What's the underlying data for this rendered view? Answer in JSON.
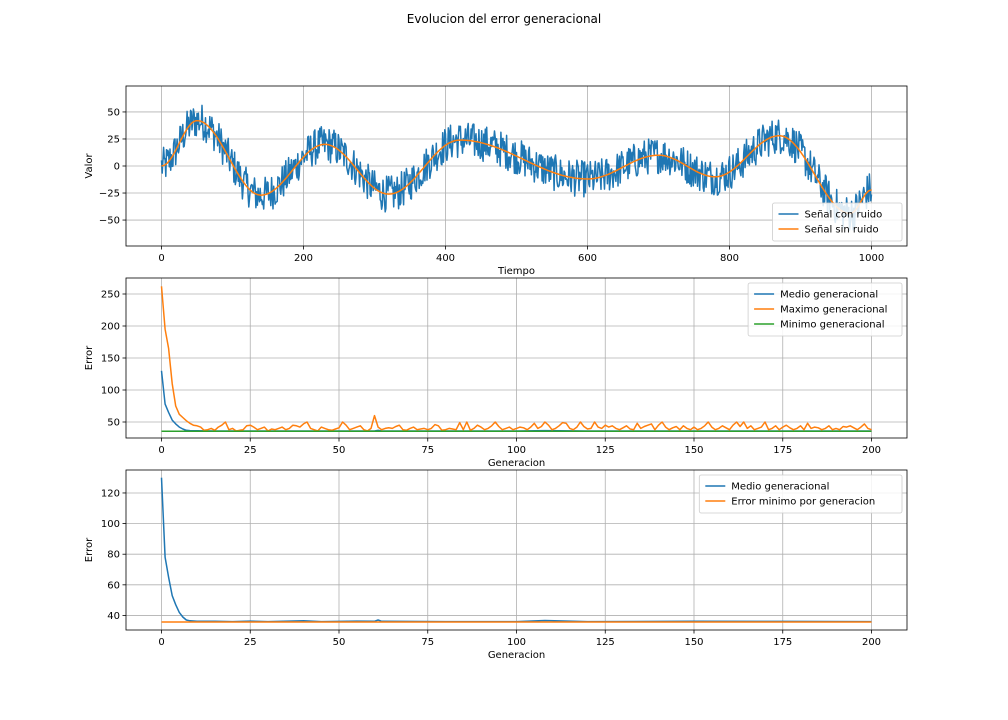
{
  "suptitle": "Evolucion del error generacional",
  "colors": {
    "blue": "#1f77b4",
    "orange": "#ff7f0e",
    "green": "#2ca02c",
    "grid": "#b0b0b0"
  },
  "chart_data": [
    {
      "type": "line",
      "xlabel": "Tiempo",
      "ylabel": "Valor",
      "xlim": [
        -50,
        1050
      ],
      "ylim": [
        -74,
        74
      ],
      "xticks": [
        0,
        200,
        400,
        600,
        800,
        1000
      ],
      "yticks": [
        -50,
        -25,
        0,
        25,
        50
      ],
      "grid": true,
      "legend": "lower right",
      "series": [
        {
          "name": "Señal con ruido",
          "color": "#1f77b4",
          "noisy": true,
          "noise_amplitude": 17,
          "x": [
            0,
            50,
            140,
            230,
            320,
            420,
            600,
            700,
            780,
            870,
            970,
            1000
          ],
          "y": [
            0,
            42,
            -27,
            20,
            -26,
            24,
            -12,
            10,
            -10,
            28,
            -44,
            -22
          ]
        },
        {
          "name": "Señal sin ruido",
          "color": "#ff7f0e",
          "x": [
            0,
            50,
            140,
            230,
            320,
            420,
            600,
            700,
            780,
            870,
            970,
            1000
          ],
          "y": [
            0,
            42,
            -27,
            20,
            -26,
            24,
            -12,
            10,
            -10,
            28,
            -44,
            -22
          ]
        }
      ]
    },
    {
      "type": "line",
      "xlabel": "Generacion",
      "ylabel": "Error",
      "xlim": [
        -10,
        210
      ],
      "ylim": [
        25,
        275
      ],
      "xticks": [
        0,
        25,
        50,
        75,
        100,
        125,
        150,
        175,
        200
      ],
      "yticks": [
        50,
        100,
        150,
        200,
        250
      ],
      "grid": true,
      "legend": "upper right",
      "series": [
        {
          "name": "Medio generacional",
          "color": "#1f77b4",
          "x": [
            0,
            1,
            2,
            3,
            4,
            5,
            6,
            7,
            8,
            10,
            15,
            20,
            30,
            40,
            60,
            61,
            62,
            80,
            100,
            108,
            120,
            150,
            175,
            200
          ],
          "y": [
            130,
            78,
            65,
            53,
            47,
            42,
            39,
            37,
            36.5,
            36.2,
            36,
            36,
            36,
            36,
            36,
            37,
            36,
            36,
            36,
            36.5,
            36,
            36,
            36,
            36
          ]
        },
        {
          "name": "Maximo generacional",
          "color": "#ff7f0e",
          "x": [
            0,
            1,
            2,
            3,
            4,
            5,
            6,
            7,
            8,
            9,
            10,
            11,
            12,
            13,
            14,
            15,
            16,
            17,
            18,
            19,
            20,
            21,
            22,
            23,
            24,
            25,
            26,
            27,
            28,
            29,
            30,
            31,
            32,
            33,
            34,
            35,
            36,
            37,
            38,
            39,
            40,
            41,
            42,
            43,
            44,
            45,
            46,
            47,
            48,
            49,
            50,
            51,
            52,
            53,
            54,
            55,
            56,
            57,
            58,
            59,
            60,
            61,
            62,
            63,
            64,
            65,
            66,
            67,
            68,
            69,
            70,
            71,
            72,
            73,
            74,
            75,
            76,
            77,
            78,
            79,
            80,
            81,
            82,
            83,
            84,
            85,
            86,
            87,
            88,
            89,
            90,
            91,
            92,
            93,
            94,
            95,
            96,
            97,
            98,
            99,
            100,
            101,
            102,
            103,
            104,
            105,
            106,
            107,
            108,
            109,
            110,
            111,
            112,
            113,
            114,
            115,
            116,
            117,
            118,
            119,
            120,
            121,
            122,
            123,
            124,
            125,
            126,
            127,
            128,
            129,
            130,
            131,
            132,
            133,
            134,
            135,
            136,
            137,
            138,
            139,
            140,
            141,
            142,
            143,
            144,
            145,
            146,
            147,
            148,
            149,
            150,
            151,
            152,
            153,
            154,
            155,
            156,
            157,
            158,
            159,
            160,
            161,
            162,
            163,
            164,
            165,
            166,
            167,
            168,
            169,
            170,
            171,
            172,
            173,
            174,
            175,
            176,
            177,
            178,
            179,
            180,
            181,
            182,
            183,
            184,
            185,
            186,
            187,
            188,
            189,
            190,
            191,
            192,
            193,
            194,
            195,
            196,
            197,
            198,
            199,
            200
          ],
          "y": [
            262,
            195,
            165,
            110,
            75,
            62,
            57,
            52,
            48,
            45,
            44,
            42,
            37,
            38,
            40,
            37,
            42,
            45,
            50,
            38,
            40,
            36,
            37,
            38,
            44,
            45,
            42,
            38,
            40,
            42,
            36,
            39,
            38,
            40,
            42,
            38,
            40,
            45,
            44,
            42,
            47,
            50,
            40,
            38,
            36,
            42,
            40,
            38,
            37,
            39,
            41,
            50,
            45,
            38,
            40,
            42,
            44,
            38,
            36,
            40,
            60,
            42,
            38,
            40,
            41,
            40,
            43,
            45,
            38,
            37,
            40,
            42,
            38,
            39,
            40,
            38,
            40,
            46,
            44,
            37,
            38,
            40,
            39,
            38,
            49,
            38,
            50,
            37,
            40,
            45,
            42,
            38,
            40,
            44,
            50,
            43,
            38,
            40,
            42,
            38,
            40,
            42,
            41,
            38,
            42,
            48,
            40,
            43,
            50,
            45,
            38,
            40,
            44,
            49,
            48,
            40,
            38,
            42,
            50,
            43,
            39,
            40,
            50,
            42,
            40,
            45,
            42,
            44,
            40,
            38,
            41,
            44,
            39,
            38,
            48,
            40,
            43,
            45,
            47,
            38,
            45,
            50,
            42,
            38,
            41,
            43,
            38,
            44,
            40,
            38,
            42,
            38,
            40,
            44,
            50,
            42,
            38,
            40,
            44,
            41,
            38,
            45,
            50,
            43,
            50,
            40,
            44,
            38,
            40,
            42,
            50,
            38,
            40,
            44,
            38,
            42,
            45,
            41,
            38,
            40,
            44,
            38,
            48,
            40,
            42,
            41,
            38,
            40,
            44,
            38,
            40,
            38,
            43,
            42,
            44,
            41,
            38,
            42,
            47,
            40,
            38
          ]
        },
        {
          "name": "Minimo generacional",
          "color": "#2ca02c",
          "x": [
            0,
            50,
            100,
            150,
            200
          ],
          "y": [
            35.5,
            35.5,
            35.5,
            35.5,
            35.5
          ]
        }
      ]
    },
    {
      "type": "line",
      "xlabel": "Generacion",
      "ylabel": "Error",
      "xlim": [
        -10,
        210
      ],
      "ylim": [
        30.5,
        135
      ],
      "xticks": [
        0,
        25,
        50,
        75,
        100,
        125,
        150,
        175,
        200
      ],
      "yticks": [
        40,
        60,
        80,
        100,
        120
      ],
      "grid": true,
      "legend": "upper right",
      "series": [
        {
          "name": "Medio generacional",
          "color": "#1f77b4",
          "x": [
            0,
            1,
            2,
            3,
            4,
            5,
            6,
            7,
            8,
            10,
            15,
            20,
            25,
            30,
            40,
            45,
            55,
            60,
            61,
            62,
            80,
            100,
            108,
            120,
            150,
            175,
            200
          ],
          "y": [
            130,
            78,
            65,
            53,
            47,
            42,
            39,
            37,
            36.5,
            36.2,
            36.2,
            36,
            36.3,
            36,
            36.5,
            36,
            36.3,
            36.2,
            37,
            36.2,
            36,
            36,
            36.7,
            36,
            36.2,
            36.1,
            36
          ]
        },
        {
          "name": "Error minimo por generacion",
          "color": "#ff7f0e",
          "x": [
            0,
            25,
            50,
            75,
            100,
            125,
            150,
            175,
            200
          ],
          "y": [
            35.7,
            35.7,
            35.7,
            35.7,
            35.7,
            35.7,
            35.7,
            35.7,
            35.7
          ]
        }
      ]
    }
  ]
}
